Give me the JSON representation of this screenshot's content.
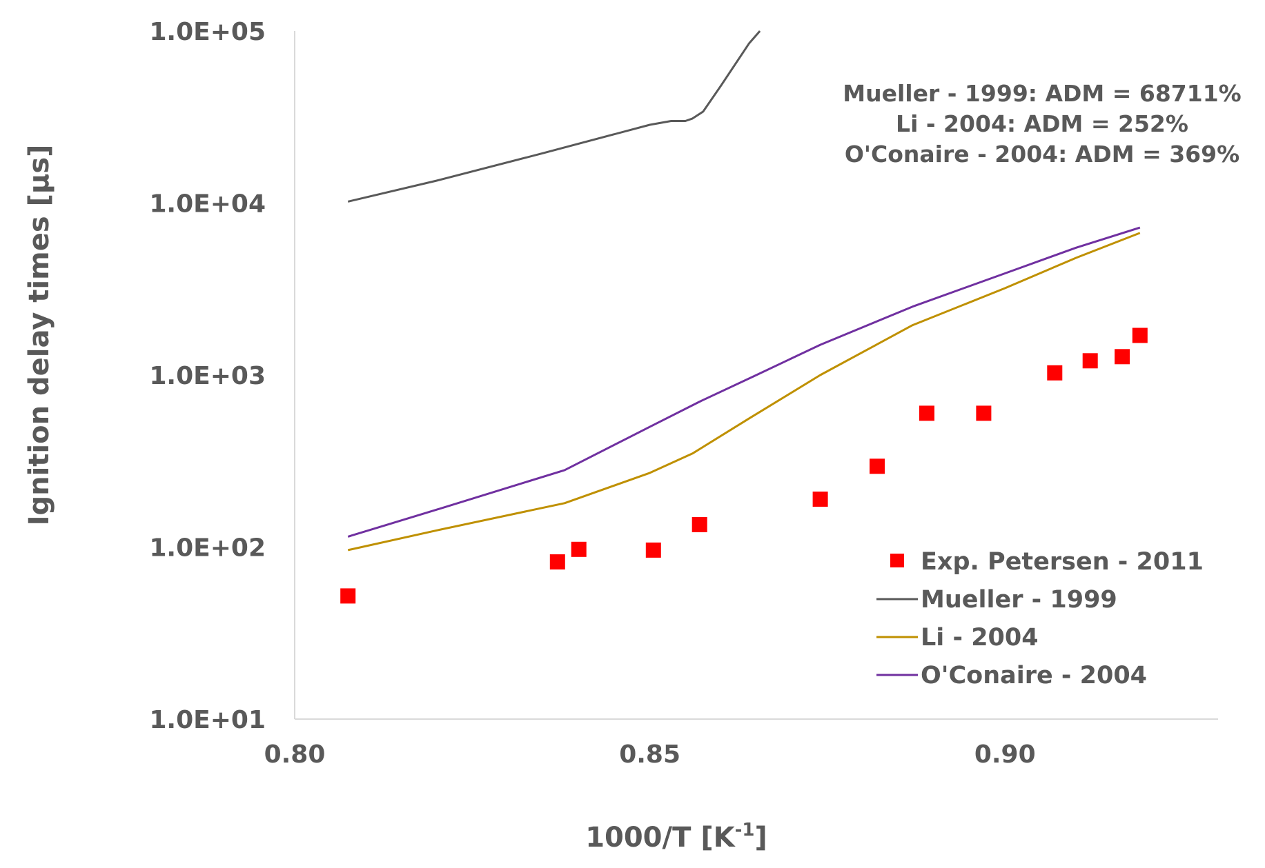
{
  "chart_data": {
    "type": "scatter",
    "xlabel_main": "1000/T [K",
    "xlabel_sup": "-1",
    "xlabel_end": "]",
    "ylabel": "Ignition delay times [µs]",
    "xlim": [
      0.8,
      0.93
    ],
    "ylim": [
      10,
      100000
    ],
    "yscale": "log",
    "x_ticks": [
      0.8,
      0.85,
      0.9
    ],
    "x_tick_labels": [
      "0.80",
      "0.85",
      "0.90"
    ],
    "y_ticks": [
      10,
      100,
      1000,
      10000,
      100000
    ],
    "y_tick_labels": [
      "1.0E+01",
      "1.0E+02",
      "1.0E+03",
      "1.0E+04",
      "1.0E+05"
    ],
    "grid": false,
    "annotations": [
      "Mueller - 1999: ADM = 68711%",
      "Li - 2004: ADM = 252%",
      "O'Conaire - 2004: ADM = 369%"
    ],
    "legend": [
      "Exp. Petersen - 2011",
      "Mueller - 1999",
      "Li - 2004",
      "O'Conaire - 2004"
    ],
    "legend_position": "bottom-right",
    "series": [
      {
        "name": "Exp. Petersen - 2011",
        "kind": "scatter",
        "color": "#ff0000",
        "x": [
          0.8075,
          0.837,
          0.84,
          0.8505,
          0.857,
          0.874,
          0.882,
          0.889,
          0.897,
          0.907,
          0.912,
          0.9165,
          0.919
        ],
        "y": [
          52,
          82,
          97,
          96,
          135,
          190,
          295,
          600,
          600,
          1030,
          1210,
          1280,
          1700
        ]
      },
      {
        "name": "Mueller - 1999",
        "kind": "line",
        "color": "#595959",
        "x": [
          0.8075,
          0.82,
          0.835,
          0.85,
          0.853,
          0.855,
          0.856,
          0.8575,
          0.86,
          0.864,
          0.8655
        ],
        "y": [
          10200,
          13500,
          19500,
          28500,
          30000,
          30000,
          31000,
          34000,
          48000,
          85000,
          100000
        ]
      },
      {
        "name": "Li - 2004",
        "kind": "line",
        "color": "#bf9000",
        "x": [
          0.8075,
          0.82,
          0.838,
          0.85,
          0.856,
          0.864,
          0.874,
          0.887,
          0.9,
          0.91,
          0.919
        ],
        "y": [
          96,
          125,
          180,
          270,
          350,
          560,
          1000,
          1950,
          3200,
          4800,
          6700
        ]
      },
      {
        "name": "O'Conaire - 2004",
        "kind": "line",
        "color": "#7030a0",
        "x": [
          0.8075,
          0.82,
          0.838,
          0.85,
          0.857,
          0.865,
          0.874,
          0.887,
          0.9,
          0.91,
          0.919
        ],
        "y": [
          115,
          165,
          280,
          500,
          700,
          1000,
          1500,
          2500,
          3900,
          5500,
          7200
        ]
      }
    ]
  }
}
